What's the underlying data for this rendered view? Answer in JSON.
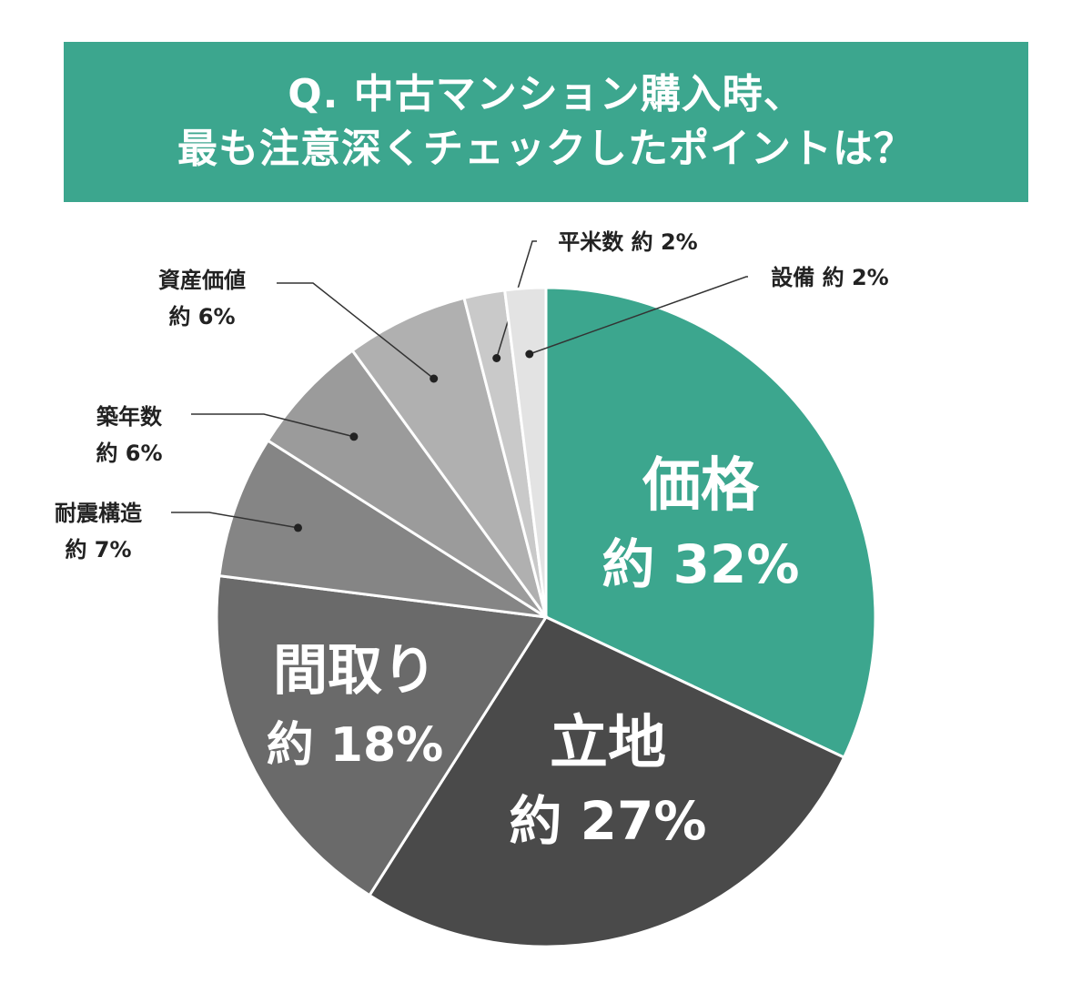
{
  "chart_data": {
    "type": "pie",
    "title": [
      "Q. 中古マンション購入時、",
      "最も注意深くチェックしたポイントは？"
    ],
    "slices": [
      {
        "label": "価格",
        "value": 32,
        "value_text": "約 32%",
        "color": "#3ca68e"
      },
      {
        "label": "立地",
        "value": 27,
        "value_text": "約 27%",
        "color": "#4a4a4a"
      },
      {
        "label": "間取り",
        "value": 18,
        "value_text": "約 18%",
        "color": "#6a6a6a"
      },
      {
        "label": "耐震構造",
        "value": 7,
        "value_text": "約 7%",
        "color": "#858585"
      },
      {
        "label": "築年数",
        "value": 6,
        "value_text": "約 6%",
        "color": "#9b9b9b"
      },
      {
        "label": "資産価値",
        "value": 6,
        "value_text": "約 6%",
        "color": "#b0b0b0"
      },
      {
        "label": "平米数",
        "value": 2,
        "value_text": "約 2%",
        "color": "#c9c9c9"
      },
      {
        "label": "設備",
        "value": 2,
        "value_text": "約 2%",
        "color": "#e3e3e3"
      }
    ]
  }
}
